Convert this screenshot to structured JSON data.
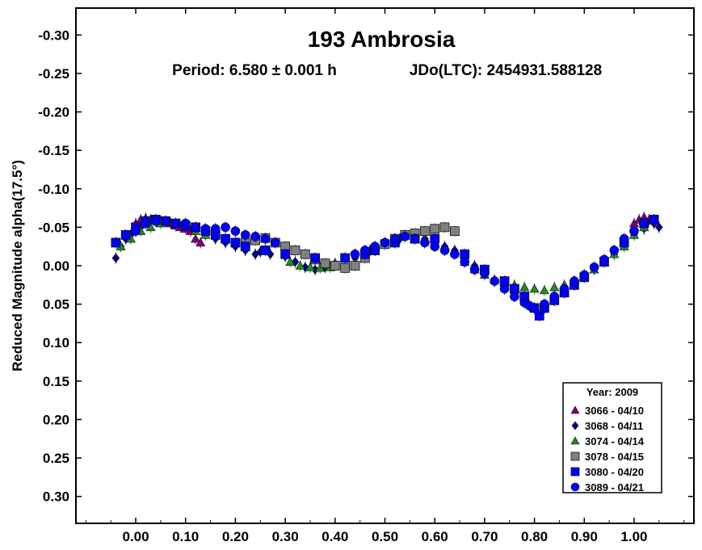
{
  "chart_data": {
    "type": "scatter",
    "title": "193 Ambrosia",
    "subtitle_period": "Period: 6.580 ± 0.001 h",
    "subtitle_epoch": "JDo(LTC): 2454931.588128",
    "xlabel": "",
    "ylabel": "Reduced Magnitude alpha(17.5°)",
    "xlim": [
      -0.12,
      1.12
    ],
    "ylim": [
      -0.335,
      0.335
    ],
    "y_inverted": true,
    "x_ticks": [
      "0.00",
      "0.10",
      "0.20",
      "0.30",
      "0.40",
      "0.50",
      "0.60",
      "0.70",
      "0.80",
      "0.90",
      "1.00"
    ],
    "x_tick_values": [
      0,
      0.1,
      0.2,
      0.3,
      0.4,
      0.5,
      0.6,
      0.7,
      0.8,
      0.9,
      1.0
    ],
    "y_ticks": [
      "-0.30",
      "-0.25",
      "-0.20",
      "-0.15",
      "-0.10",
      "-0.05",
      "0.00",
      "0.05",
      "0.10",
      "0.15",
      "0.20",
      "0.25",
      "0.30"
    ],
    "y_tick_values": [
      -0.3,
      -0.25,
      -0.2,
      -0.15,
      -0.1,
      -0.05,
      0.0,
      0.05,
      0.1,
      0.15,
      0.2,
      0.25,
      0.3
    ],
    "grid": false,
    "legend_placement": "bottom-right",
    "legend_title": "Year: 2009",
    "series": [
      {
        "name": "3066 - 04/10",
        "marker": "triangle",
        "color": "#800080",
        "x": [
          0.0,
          0.01,
          0.02,
          0.03,
          0.05,
          0.07,
          0.08,
          0.09,
          0.1,
          0.11,
          0.12,
          0.13,
          1.0,
          1.01,
          1.02,
          1.03
        ],
        "y": [
          -0.055,
          -0.06,
          -0.062,
          -0.06,
          -0.058,
          -0.055,
          -0.052,
          -0.05,
          -0.048,
          -0.045,
          -0.035,
          -0.03,
          -0.055,
          -0.06,
          -0.063,
          -0.06
        ]
      },
      {
        "name": "3068 - 04/11",
        "marker": "diamond",
        "color": "#00008b",
        "x": [
          -0.04,
          -0.03,
          -0.02,
          -0.01,
          0.0,
          0.01,
          0.02,
          0.14,
          0.16,
          0.18,
          0.2,
          0.22,
          0.24,
          0.25,
          0.27,
          0.3,
          0.32,
          0.34,
          0.36,
          0.38,
          0.4,
          0.44,
          0.47,
          0.5,
          0.53,
          0.56,
          0.58,
          0.6,
          0.62,
          0.64,
          0.66,
          0.68,
          0.7,
          0.72,
          0.74,
          0.76,
          0.84,
          0.86,
          0.88,
          0.9,
          0.92,
          0.94,
          0.96,
          0.98,
          1.0,
          1.02,
          1.04,
          1.05
        ],
        "y": [
          -0.01,
          -0.025,
          -0.035,
          -0.04,
          -0.045,
          -0.05,
          -0.055,
          -0.04,
          -0.035,
          -0.03,
          -0.025,
          -0.02,
          -0.015,
          -0.018,
          -0.015,
          -0.012,
          -0.005,
          0.002,
          0.005,
          0.002,
          -0.003,
          -0.01,
          -0.02,
          -0.028,
          -0.035,
          -0.038,
          -0.035,
          -0.03,
          -0.025,
          -0.02,
          -0.01,
          0.0,
          0.01,
          0.02,
          0.03,
          0.04,
          0.04,
          0.035,
          0.025,
          0.015,
          0.005,
          -0.005,
          -0.015,
          -0.03,
          -0.04,
          -0.048,
          -0.055,
          -0.05
        ]
      },
      {
        "name": "3074 - 04/14",
        "marker": "triangle",
        "color": "#228b22",
        "x": [
          -0.03,
          -0.01,
          0.01,
          0.03,
          0.05,
          0.12,
          0.14,
          0.31,
          0.33,
          0.35,
          0.37,
          0.39,
          0.66,
          0.68,
          0.7,
          0.72,
          0.74,
          0.76,
          0.78,
          0.8,
          0.82,
          0.84,
          0.86,
          0.88,
          0.9,
          0.92,
          0.94,
          0.96,
          0.98,
          1.0,
          1.02
        ],
        "y": [
          -0.025,
          -0.035,
          -0.045,
          -0.05,
          -0.055,
          -0.045,
          -0.04,
          -0.005,
          0.0,
          0.002,
          0.003,
          0.002,
          -0.005,
          0.005,
          0.012,
          0.018,
          0.022,
          0.025,
          0.028,
          0.03,
          0.032,
          0.028,
          0.025,
          0.02,
          0.012,
          0.005,
          -0.005,
          -0.015,
          -0.025,
          -0.04,
          -0.05
        ]
      },
      {
        "name": "3078 - 04/15",
        "marker": "square",
        "color": "#808080",
        "x": [
          0.22,
          0.24,
          0.26,
          0.28,
          0.3,
          0.32,
          0.34,
          0.36,
          0.38,
          0.4,
          0.42,
          0.44,
          0.46,
          0.48,
          0.5,
          0.52,
          0.54,
          0.56,
          0.58,
          0.6,
          0.62,
          0.64
        ],
        "y": [
          -0.03,
          -0.033,
          -0.036,
          -0.03,
          -0.025,
          -0.02,
          -0.015,
          -0.008,
          -0.003,
          0.0,
          0.003,
          0.0,
          -0.01,
          -0.02,
          -0.028,
          -0.035,
          -0.04,
          -0.042,
          -0.045,
          -0.048,
          -0.05,
          -0.045
        ]
      },
      {
        "name": "3080 - 04/20",
        "marker": "square",
        "color": "#0000ff",
        "x": [
          -0.04,
          -0.02,
          0.0,
          0.02,
          0.04,
          0.06,
          0.08,
          0.1,
          0.12,
          0.14,
          0.16,
          0.18,
          0.2,
          0.22,
          0.26,
          0.3,
          0.36,
          0.42,
          0.46,
          0.48,
          0.52,
          0.56,
          0.6,
          0.66,
          0.7,
          0.74,
          0.76,
          0.78,
          0.8,
          0.81,
          0.82,
          0.84,
          0.86,
          0.88,
          0.9,
          0.94,
          0.98,
          1.02,
          1.04
        ],
        "y": [
          -0.03,
          -0.04,
          -0.05,
          -0.058,
          -0.06,
          -0.058,
          -0.055,
          -0.052,
          -0.05,
          -0.045,
          -0.04,
          -0.035,
          -0.03,
          -0.025,
          -0.02,
          -0.015,
          -0.01,
          -0.01,
          -0.015,
          -0.02,
          -0.03,
          -0.035,
          -0.035,
          -0.015,
          0.005,
          0.02,
          0.03,
          0.04,
          0.055,
          0.065,
          0.055,
          0.045,
          0.035,
          0.025,
          0.015,
          -0.005,
          -0.03,
          -0.055,
          -0.06
        ]
      },
      {
        "name": "3089 - 04/21",
        "marker": "circle",
        "color": "#0000ff",
        "x": [
          0.0,
          0.02,
          0.04,
          0.06,
          0.08,
          0.1,
          0.12,
          0.14,
          0.16,
          0.18,
          0.2,
          0.22,
          0.24,
          0.26,
          0.28,
          0.44,
          0.46,
          0.48,
          0.5,
          0.52,
          0.54,
          0.56,
          0.58,
          0.6,
          0.62,
          0.64,
          0.66,
          0.68,
          0.7,
          0.72,
          0.74,
          0.76,
          0.78,
          0.79,
          0.8,
          0.82,
          0.84,
          0.86,
          0.88,
          0.9,
          0.92,
          0.94,
          0.96,
          0.98,
          1.0,
          1.02,
          1.04
        ],
        "y": [
          -0.045,
          -0.055,
          -0.058,
          -0.058,
          -0.055,
          -0.055,
          -0.05,
          -0.048,
          -0.048,
          -0.05,
          -0.045,
          -0.04,
          -0.038,
          -0.035,
          -0.03,
          -0.015,
          -0.02,
          -0.025,
          -0.03,
          -0.035,
          -0.038,
          -0.035,
          -0.03,
          -0.025,
          -0.02,
          -0.015,
          -0.005,
          0.005,
          0.01,
          0.02,
          0.03,
          0.04,
          0.048,
          0.052,
          0.055,
          0.05,
          0.04,
          0.03,
          0.02,
          0.012,
          0.002,
          -0.008,
          -0.02,
          -0.035,
          -0.045,
          -0.055,
          -0.06
        ]
      }
    ]
  }
}
